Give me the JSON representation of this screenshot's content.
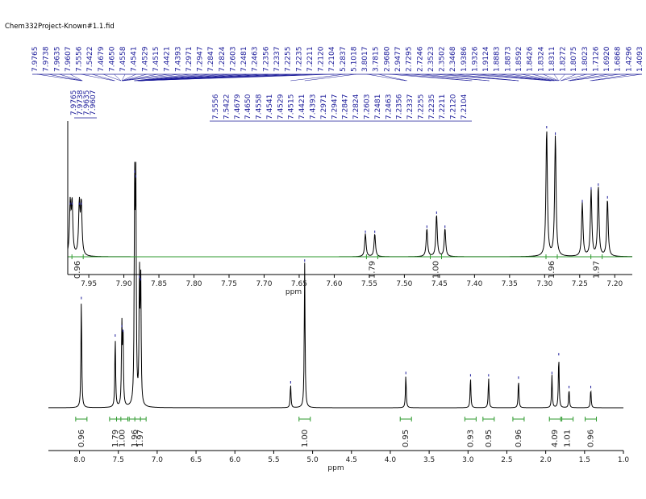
{
  "title": "Chem332Project-Known#1.1.fid",
  "colors": {
    "spectrum": "#000000",
    "peak_label": "#1a1a99",
    "integral": "#2e9a2e",
    "axis": "#000000"
  },
  "chart_data": [
    {
      "type": "line",
      "title": "",
      "xlabel": "ppm",
      "xlim": [
        8.4,
        1.0
      ],
      "x_reversed": true,
      "ticks": [
        "8.0",
        "7.5",
        "7.0",
        "6.5",
        "6.0",
        "5.5",
        "5.0",
        "4.5",
        "4.0",
        "3.5",
        "3.0",
        "2.5",
        "2.0",
        "1.5",
        "1.0"
      ],
      "peaks": [
        {
          "x": 7.976,
          "h": 0.46
        },
        {
          "x": 7.54,
          "h": 0.3
        },
        {
          "x": 7.455,
          "h": 0.34
        },
        {
          "x": 7.44,
          "h": 0.32
        },
        {
          "x": 7.29,
          "h": 1.0
        },
        {
          "x": 7.275,
          "h": 0.98
        },
        {
          "x": 7.228,
          "h": 0.55
        },
        {
          "x": 7.212,
          "h": 0.54
        },
        {
          "x": 5.283,
          "h": 0.1
        },
        {
          "x": 5.102,
          "h": 0.62
        },
        {
          "x": 3.8,
          "h": 0.14
        },
        {
          "x": 2.968,
          "h": 0.13
        },
        {
          "x": 2.735,
          "h": 0.13
        },
        {
          "x": 2.35,
          "h": 0.12
        },
        {
          "x": 1.92,
          "h": 0.14
        },
        {
          "x": 1.832,
          "h": 0.22
        },
        {
          "x": 1.7,
          "h": 0.08
        },
        {
          "x": 1.42,
          "h": 0.08
        }
      ],
      "integrals": [
        {
          "x": 7.976,
          "value": "0.96"
        },
        {
          "x": 7.54,
          "value": "1.79"
        },
        {
          "x": 7.45,
          "value": "1.00"
        },
        {
          "x": 7.288,
          "value": "1.96"
        },
        {
          "x": 7.215,
          "value": "1.97"
        },
        {
          "x": 5.102,
          "value": "1.00"
        },
        {
          "x": 3.8,
          "value": "0.95"
        },
        {
          "x": 2.968,
          "value": "0.93"
        },
        {
          "x": 2.735,
          "value": "0.95"
        },
        {
          "x": 2.35,
          "value": "0.96"
        },
        {
          "x": 1.88,
          "value": "4.09"
        },
        {
          "x": 1.72,
          "value": "1.01"
        },
        {
          "x": 1.42,
          "value": "0.96"
        }
      ]
    },
    {
      "type": "line",
      "title": "",
      "xlabel": "ppm",
      "xlim": [
        7.98,
        7.175
      ],
      "x_reversed": true,
      "ticks": [
        "7.95",
        "7.90",
        "7.85",
        "7.80",
        "7.75",
        "7.70",
        "7.65",
        "7.60",
        "7.55",
        "7.50",
        "7.45",
        "7.40",
        "7.35",
        "7.30",
        "7.25",
        "7.20"
      ],
      "peaks": [
        {
          "x": 7.9765,
          "h": 0.4
        },
        {
          "x": 7.9738,
          "h": 0.4
        },
        {
          "x": 7.9635,
          "h": 0.4
        },
        {
          "x": 7.9607,
          "h": 0.4
        },
        {
          "x": 7.5556,
          "h": 0.18
        },
        {
          "x": 7.5422,
          "h": 0.18
        },
        {
          "x": 7.4679,
          "h": 0.22
        },
        {
          "x": 7.4541,
          "h": 0.33
        },
        {
          "x": 7.4421,
          "h": 0.22
        },
        {
          "x": 7.2971,
          "h": 1.0
        },
        {
          "x": 7.2847,
          "h": 0.95
        },
        {
          "x": 7.2463,
          "h": 0.42
        },
        {
          "x": 7.2337,
          "h": 0.52
        },
        {
          "x": 7.2235,
          "h": 0.55
        },
        {
          "x": 7.2104,
          "h": 0.45
        }
      ],
      "integrals": [
        {
          "x": 7.966,
          "value": "0.96"
        },
        {
          "x": 7.546,
          "value": "1.79"
        },
        {
          "x": 7.455,
          "value": "1.00"
        },
        {
          "x": 7.29,
          "value": "1.96"
        },
        {
          "x": 7.226,
          "value": "1.97"
        }
      ]
    }
  ],
  "peak_labels_group1": [
    "7.9765",
    "7.9738",
    "7.9635",
    "7.9607",
    "7.5556",
    "7.5422",
    "7.4679",
    "7.4650",
    "7.4558",
    "7.4541",
    "7.4529",
    "7.4515",
    "7.4421",
    "7.4393",
    "7.2971",
    "7.2947",
    "7.2847",
    "7.2824",
    "7.2603",
    "7.2481",
    "7.2463",
    "7.2356",
    "7.2337",
    "7.2255",
    "7.2235",
    "7.2211",
    "7.2120",
    "7.2104",
    "5.2837",
    "5.1018",
    "3.8017",
    "3.7815",
    "2.9680",
    "2.9477",
    "2.7295",
    "2.7246",
    "2.3523",
    "2.3502",
    "2.3468",
    "1.9386",
    "1.9326",
    "1.9124",
    "1.8883",
    "1.8873",
    "1.8592",
    "1.8426",
    "1.8324",
    "1.8311",
    "1.8272",
    "1.8075",
    "1.8023",
    "1.7126",
    "1.6920",
    "1.6868",
    "1.4296",
    "1.4093"
  ],
  "peak_labels_group2": [
    "7.9765",
    "7.9738",
    "7.9635",
    "7.9607"
  ],
  "peak_labels_group3": [
    "7.5556",
    "7.5422",
    "7.4679",
    "7.4650",
    "7.4558",
    "7.4541",
    "7.4529",
    "7.4515",
    "7.4421",
    "7.4393",
    "7.2971",
    "7.2947",
    "7.2847",
    "7.2824",
    "7.2603",
    "7.2481",
    "7.2463",
    "7.2356",
    "7.2337",
    "7.2255",
    "7.2235",
    "7.2211",
    "7.2120",
    "7.2104"
  ]
}
